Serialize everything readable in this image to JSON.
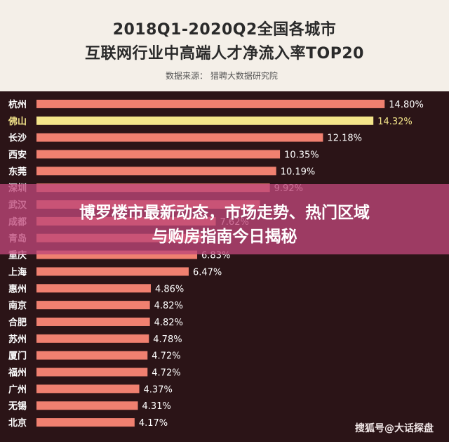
{
  "header": {
    "title_line1": "2018Q1-2020Q2全国各城市",
    "title_line2": "互联网行业中高端人才净流入率TOP20",
    "source": "数据来源：  猎聘大数据研究院"
  },
  "overlay": {
    "line1": "博罗楼市最新动态，市场走势、热门区域",
    "line2": "与购房指南今日揭秘"
  },
  "watermark": "搜狐号@大话探盘",
  "colors": {
    "bar": "#f08070",
    "highlight_bar": "#f4e58a",
    "label": "#ffffff",
    "highlight_label": "#f4e58a"
  },
  "chart_data": {
    "type": "bar",
    "orientation": "horizontal",
    "categories": [
      "杭州",
      "佛山",
      "长沙",
      "西安",
      "东莞",
      "深圳",
      "武汉",
      "成都",
      "青岛",
      "重庆",
      "上海",
      "惠州",
      "南京",
      "合肥",
      "苏州",
      "厦门",
      "福州",
      "广州",
      "无锡",
      "北京"
    ],
    "values": [
      14.8,
      14.32,
      12.18,
      10.35,
      10.19,
      9.92,
      9.5,
      7.62,
      7.02,
      6.83,
      6.47,
      4.86,
      4.82,
      4.82,
      4.78,
      4.72,
      4.72,
      4.37,
      4.31,
      4.17
    ],
    "value_labels": [
      "14.80%",
      "14.32%",
      "12.18%",
      "10.35%",
      "10.19%",
      "9.92%",
      "",
      "7.62%",
      "",
      "6.83%",
      "6.47%",
      "4.86%",
      "4.82%",
      "4.82%",
      "4.78%",
      "4.72%",
      "4.72%",
      "4.37%",
      "4.31%",
      "4.17%"
    ],
    "highlight_index": 1,
    "xlim": [
      0,
      15
    ]
  }
}
